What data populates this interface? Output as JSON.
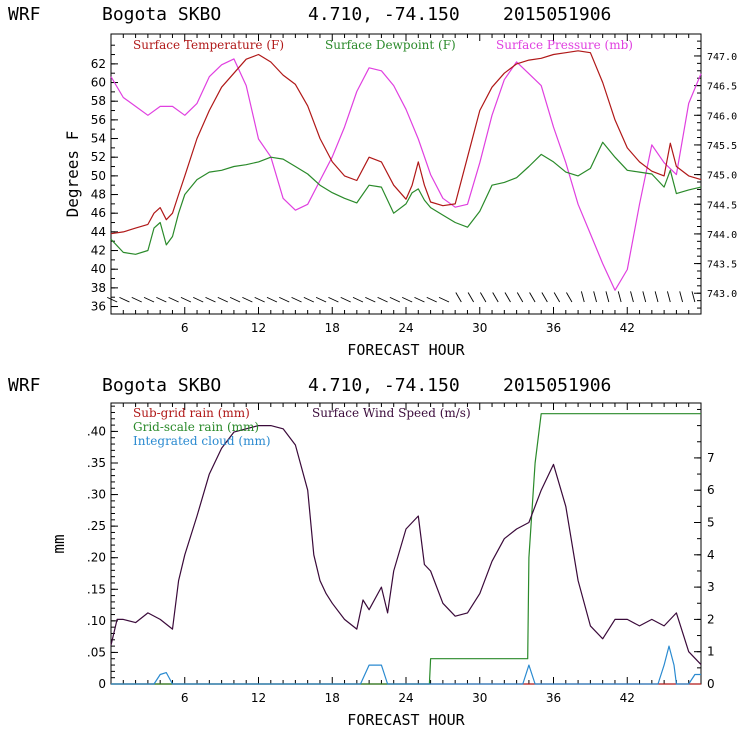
{
  "top": {
    "title_model": "WRF",
    "title_location": "Bogota SKBO",
    "title_coords": "4.710, -74.150",
    "title_date": "2015051906",
    "xlabel": "FORECAST HOUR",
    "ylabel": "Degrees F",
    "legend_temp": "Surface Temperature (F)",
    "legend_dew": "Surface Dewpoint (F)",
    "legend_press": "Surface Pressure (mb)"
  },
  "bottom": {
    "title_model": "WRF",
    "title_location": "Bogota SKBO",
    "title_coords": "4.710, -74.150",
    "title_date": "2015051906",
    "xlabel": "FORECAST HOUR",
    "ylabel": "mm",
    "legend_subgrid": "Sub-grid rain (mm)",
    "legend_grid": "Grid-scale rain (mm)",
    "legend_cloud": "Integrated cloud (mm)",
    "legend_wind": "Surface Wind Speed (m/s)"
  },
  "colors": {
    "temp": "#b01818",
    "dew": "#2a8a2a",
    "press": "#e040e0",
    "wind": "#3a0a3a",
    "grid": "#2a8a2a",
    "cloud": "#2a8ad0",
    "axis": "#000000"
  },
  "chart_data": [
    {
      "type": "line",
      "title": "WRF Bogota SKBO 4.710, -74.150 2015051906",
      "xlabel": "FORECAST HOUR",
      "ylabel": "Degrees F",
      "xlim": [
        0,
        48
      ],
      "x_ticks": [
        "6",
        "12",
        "18",
        "24",
        "30",
        "36",
        "42"
      ],
      "y_ticks": [
        "36",
        "38",
        "40",
        "42",
        "44",
        "46",
        "48",
        "50",
        "52",
        "54",
        "56",
        "58",
        "60",
        "62"
      ],
      "ylim": [
        35.2,
        65.2
      ],
      "y2label": "Surface Pressure (mb)",
      "y2_ticks": [
        "743.0",
        "743.5",
        "744.0",
        "744.5",
        "745.0",
        "745.5",
        "746.0",
        "746.5",
        "747.0"
      ],
      "y2lim": [
        742.65,
        747.37
      ],
      "series": [
        {
          "name": "Surface Temperature (F)",
          "x": [
            0,
            1,
            2,
            3,
            3.5,
            4,
            4.5,
            5,
            5.5,
            6,
            7,
            8,
            9,
            10,
            11,
            12,
            13,
            14,
            15,
            16,
            17,
            18,
            19,
            20,
            21,
            22,
            23,
            24,
            24.5,
            25,
            25.5,
            26,
            27,
            28,
            29,
            30,
            31,
            32,
            33,
            34,
            35,
            36,
            37,
            38,
            39,
            40,
            41,
            42,
            43,
            44,
            45,
            45.5,
            46,
            47,
            48
          ],
          "y": [
            43.8,
            44.0,
            44.4,
            44.8,
            46,
            46.6,
            45.3,
            46,
            48,
            50,
            54,
            57,
            59.5,
            61,
            62.5,
            63,
            62.2,
            60.8,
            59.8,
            57.5,
            54,
            51.5,
            50,
            49.5,
            52,
            51.5,
            49,
            47.5,
            49,
            51.5,
            49,
            47.2,
            46.8,
            47,
            52,
            57,
            59.5,
            61,
            62,
            62.4,
            62.6,
            63,
            63.2,
            63.4,
            63.2,
            60,
            56,
            53,
            51.5,
            50.5,
            50,
            53.5,
            51,
            50,
            49.6
          ]
        },
        {
          "name": "Surface Dewpoint (F)",
          "x": [
            0,
            1,
            2,
            3,
            3.5,
            4,
            4.5,
            5,
            5.5,
            6,
            7,
            8,
            9,
            10,
            11,
            12,
            13,
            14,
            15,
            16,
            17,
            18,
            19,
            20,
            21,
            22,
            23,
            24,
            24.5,
            25,
            25.5,
            26,
            27,
            28,
            29,
            30,
            31,
            32,
            33,
            34,
            35,
            36,
            37,
            38,
            39,
            40,
            41,
            42,
            43,
            44,
            45,
            45.5,
            46,
            47,
            48
          ],
          "y": [
            43.2,
            41.8,
            41.6,
            42.0,
            44.4,
            45.0,
            42.6,
            43.5,
            46,
            48,
            49.6,
            50.4,
            50.6,
            51,
            51.2,
            51.5,
            52,
            51.8,
            51,
            50.2,
            49,
            48.2,
            47.6,
            47.1,
            49,
            48.8,
            46,
            47,
            48.2,
            48.6,
            47.4,
            46.6,
            45.8,
            45,
            44.5,
            46.2,
            49,
            49.3,
            49.8,
            51,
            52.3,
            51.5,
            50.4,
            50,
            50.8,
            53.6,
            52,
            50.6,
            50.4,
            50.2,
            48.8,
            50.6,
            48.1,
            48.5,
            48.8
          ]
        },
        {
          "name": "Surface Pressure (mb)",
          "x": [
            0,
            1,
            2,
            3,
            4,
            5,
            6,
            7,
            8,
            9,
            10,
            11,
            12,
            13,
            14,
            15,
            16,
            17,
            18,
            19,
            20,
            21,
            22,
            23,
            24,
            25,
            26,
            27,
            28,
            29,
            30,
            31,
            32,
            33,
            34,
            35,
            36,
            37,
            38,
            39,
            40,
            41,
            42,
            43,
            44,
            45,
            46,
            47,
            48
          ],
          "y": [
            746.65,
            746.3,
            746.15,
            746.0,
            746.15,
            746.15,
            746.0,
            746.2,
            746.65,
            746.85,
            746.95,
            746.5,
            745.6,
            745.3,
            744.6,
            744.4,
            744.5,
            744.9,
            745.3,
            745.8,
            746.4,
            746.8,
            746.75,
            746.5,
            746.1,
            745.6,
            745.0,
            744.6,
            744.45,
            744.5,
            745.2,
            746.0,
            746.6,
            746.9,
            746.7,
            746.5,
            745.8,
            745.2,
            744.5,
            744.0,
            743.5,
            743.05,
            743.4,
            744.5,
            745.5,
            745.2,
            745.0,
            746.2,
            746.7
          ]
        }
      ],
      "wind_barbs": true
    },
    {
      "type": "line",
      "title": "WRF Bogota SKBO 4.710, -74.150 2015051906",
      "xlabel": "FORECAST HOUR",
      "ylabel": "mm",
      "xlim": [
        0,
        48
      ],
      "x_ticks": [
        "6",
        "12",
        "18",
        "24",
        "30",
        "36",
        "42"
      ],
      "y_ticks": [
        "0",
        ".05",
        ".10",
        ".15",
        ".20",
        ".25",
        ".30",
        ".35",
        ".40"
      ],
      "ylim": [
        0,
        0.445
      ],
      "y2_ticks": [
        "0",
        "1",
        "2",
        "3",
        "4",
        "5",
        "6",
        "7"
      ],
      "y2lim": [
        0,
        8.7
      ],
      "series": [
        {
          "name": "Sub-grid rain (mm)",
          "x": [
            0,
            48
          ],
          "y": [
            0,
            0
          ]
        },
        {
          "name": "Grid-scale rain (mm)",
          "x": [
            0,
            25.9,
            26,
            33.9,
            34,
            34.5,
            35,
            35.5,
            48
          ],
          "y": [
            0,
            0,
            0.04,
            0.04,
            0.2,
            0.35,
            0.428,
            0.428,
            0.428
          ]
        },
        {
          "name": "Integrated cloud (mm)",
          "x": [
            0,
            3.5,
            4,
            4.5,
            5,
            20.3,
            21,
            22,
            22.5,
            33.5,
            34,
            34.5,
            44.5,
            45,
            45.4,
            45.8,
            46,
            47,
            47.5,
            48
          ],
          "y": [
            0,
            0,
            0.015,
            0.018,
            0,
            0,
            0.03,
            0.03,
            0,
            0,
            0.03,
            0,
            0,
            0.03,
            0.06,
            0.03,
            0,
            0,
            0.015,
            0.015
          ],
          "axis": "left"
        },
        {
          "name": "Surface Wind Speed (m/s)",
          "x": [
            0,
            0.5,
            1,
            2,
            3,
            4,
            5,
            5.5,
            6,
            7,
            8,
            9,
            10,
            11,
            12,
            13,
            14,
            15,
            16,
            16.5,
            17,
            17.5,
            18,
            19,
            20,
            20.5,
            21,
            22,
            22.5,
            23,
            24,
            25,
            25.5,
            26,
            27,
            28,
            29,
            30,
            31,
            32,
            33,
            34,
            35,
            36,
            37,
            38,
            39,
            40,
            41,
            42,
            43,
            44,
            45,
            46,
            47,
            48
          ],
          "y": [
            1.2,
            2.0,
            2.0,
            1.9,
            2.2,
            2.0,
            1.7,
            3.2,
            4.0,
            5.2,
            6.5,
            7.3,
            7.8,
            7.9,
            8.0,
            8.0,
            7.9,
            7.4,
            6.0,
            4.0,
            3.2,
            2.8,
            2.5,
            2.0,
            1.7,
            2.6,
            2.3,
            3.0,
            2.2,
            3.5,
            4.8,
            5.2,
            3.7,
            3.5,
            2.5,
            2.1,
            2.2,
            2.8,
            3.8,
            4.5,
            4.8,
            5.0,
            6.0,
            6.8,
            5.5,
            3.2,
            1.8,
            1.4,
            2.0,
            2.0,
            1.8,
            2.0,
            1.8,
            2.2,
            1.0,
            0.6
          ]
        }
      ]
    }
  ]
}
